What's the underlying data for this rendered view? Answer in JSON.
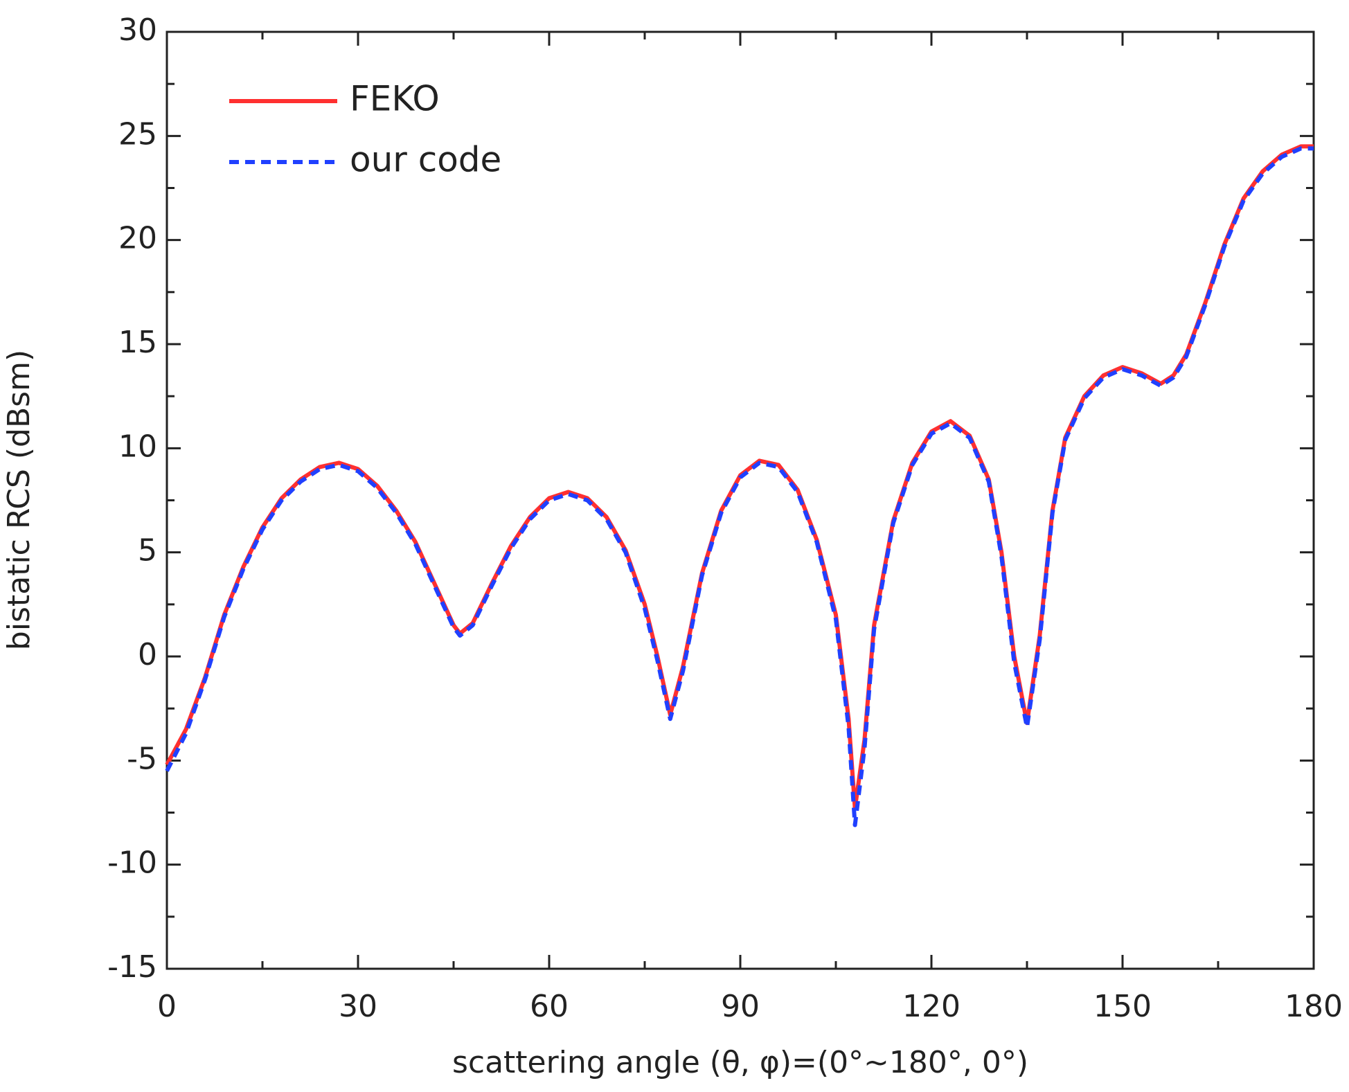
{
  "chart_data": {
    "type": "line",
    "xlabel": "scattering angle (θ, φ)=(0°~180°, 0°)",
    "ylabel": "bistatic RCS (dBsm)",
    "xlim": [
      0,
      180
    ],
    "xticks": [
      0,
      30,
      60,
      90,
      120,
      150,
      180
    ],
    "ylim": [
      -15,
      30
    ],
    "yticks": [
      -15,
      -10,
      -5,
      0,
      5,
      10,
      15,
      20,
      25,
      30
    ],
    "legend": "upper left",
    "x": [
      0,
      3,
      6,
      9,
      12,
      15,
      18,
      21,
      24,
      27,
      30,
      33,
      36,
      39,
      42,
      45,
      46,
      48,
      51,
      54,
      57,
      60,
      63,
      66,
      69,
      72,
      75,
      77,
      79,
      81,
      84,
      87,
      90,
      93,
      96,
      99,
      102,
      105,
      107,
      108,
      109.5,
      111,
      114,
      117,
      120,
      123,
      126,
      129,
      131,
      133,
      135,
      137,
      139,
      141,
      144,
      147,
      150,
      153,
      156,
      158,
      160,
      163,
      166,
      169,
      172,
      175,
      178,
      180
    ],
    "series": [
      {
        "name": "FEKO",
        "color": "#ff3030",
        "linestyle": "solid",
        "values": [
          -5.2,
          -3.5,
          -1,
          2,
          4.3,
          6.2,
          7.6,
          8.5,
          9.1,
          9.3,
          9.0,
          8.2,
          7,
          5.5,
          3.5,
          1.5,
          1.1,
          1.6,
          3.5,
          5.3,
          6.7,
          7.6,
          7.9,
          7.6,
          6.7,
          5.1,
          2.5,
          0,
          -2.8,
          -0.5,
          4,
          7,
          8.7,
          9.4,
          9.2,
          8,
          5.6,
          2,
          -3,
          -7.3,
          -4,
          1.5,
          6.5,
          9.3,
          10.8,
          11.3,
          10.6,
          8.5,
          5,
          0,
          -3.2,
          1,
          7,
          10.5,
          12.5,
          13.5,
          13.9,
          13.6,
          13.1,
          13.5,
          14.5,
          17,
          19.8,
          22,
          23.3,
          24.1,
          24.5,
          24.5
        ]
      },
      {
        "name": "our code",
        "color": "#2040ff",
        "linestyle": "dashed",
        "values": [
          -5.5,
          -3.7,
          -1.1,
          1.9,
          4.2,
          6.1,
          7.5,
          8.4,
          9.0,
          9.2,
          8.9,
          8.1,
          6.9,
          5.4,
          3.4,
          1.4,
          1.0,
          1.5,
          3.4,
          5.2,
          6.6,
          7.5,
          7.8,
          7.5,
          6.6,
          5.0,
          2.3,
          -0.2,
          -3.0,
          -0.7,
          3.9,
          6.9,
          8.6,
          9.3,
          9.1,
          7.9,
          5.5,
          1.8,
          -3.4,
          -8.1,
          -4.4,
          1.3,
          6.4,
          9.2,
          10.7,
          11.2,
          10.5,
          8.4,
          4.8,
          -0.3,
          -3.4,
          0.8,
          6.9,
          10.4,
          12.4,
          13.4,
          13.8,
          13.5,
          13.0,
          13.4,
          14.4,
          16.9,
          19.7,
          21.9,
          23.2,
          24.0,
          24.4,
          24.4
        ]
      }
    ]
  }
}
